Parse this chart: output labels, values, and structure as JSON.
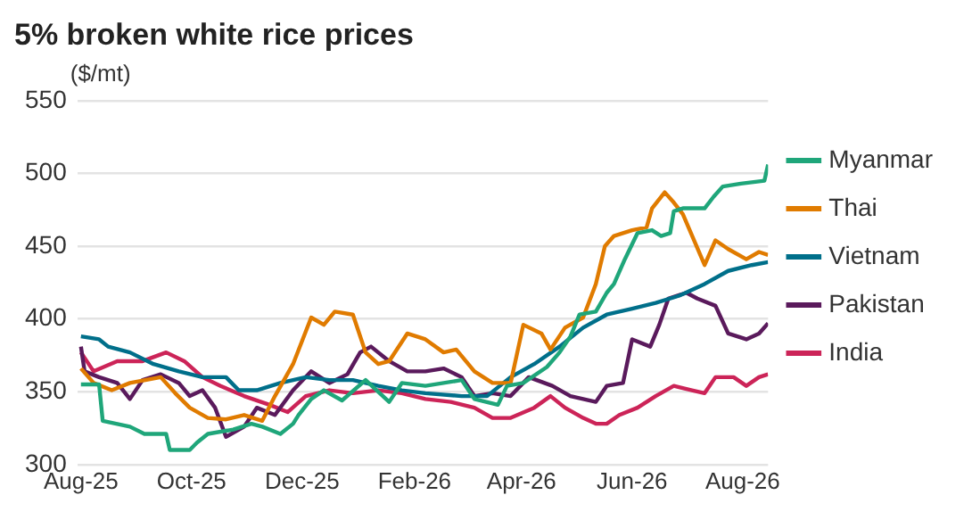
{
  "chart_data": {
    "type": "line",
    "title": "5% broken white rice prices",
    "ylabel": "($/mt)",
    "xlim": [
      "2025-07-30",
      "2026-08-15"
    ],
    "ylim": [
      300,
      550
    ],
    "yticks": [
      300,
      350,
      400,
      450,
      500,
      550
    ],
    "xticks": [
      {
        "value": "2025-08-01",
        "label": "Aug-25"
      },
      {
        "value": "2025-10-01",
        "label": "Oct-25"
      },
      {
        "value": "2025-12-01",
        "label": "Dec-25"
      },
      {
        "value": "2026-02-01",
        "label": "Feb-26"
      },
      {
        "value": "2026-04-01",
        "label": "Apr-26"
      },
      {
        "value": "2026-06-01",
        "label": "Jun-26"
      },
      {
        "value": "2026-08-01",
        "label": "Aug-26"
      }
    ],
    "grid": "y",
    "legend": "right",
    "series": [
      {
        "name": "Myanmar",
        "color": "#1fa67a",
        "x": [
          "2025-08-01",
          "2025-08-11",
          "2025-08-13",
          "2025-08-28",
          "2025-09-05",
          "2025-09-17",
          "2025-09-19",
          "2025-09-30",
          "2025-10-04",
          "2025-10-10",
          "2025-10-24",
          "2025-11-03",
          "2025-11-09",
          "2025-11-19",
          "2025-11-26",
          "2025-11-29",
          "2025-12-06",
          "2025-12-13",
          "2025-12-23",
          "2026-01-05",
          "2026-01-18",
          "2026-01-25",
          "2026-02-07",
          "2026-02-27",
          "2026-03-06",
          "2026-03-19",
          "2026-03-24",
          "2026-04-02",
          "2026-04-15",
          "2026-04-22",
          "2026-04-28",
          "2026-05-03",
          "2026-05-12",
          "2026-05-18",
          "2026-05-22",
          "2026-05-28",
          "2026-06-04",
          "2026-06-12",
          "2026-06-17",
          "2026-06-22",
          "2026-06-24",
          "2026-06-29",
          "2026-07-11",
          "2026-07-16",
          "2026-07-21",
          "2026-07-31",
          "2026-08-13",
          "2026-08-15"
        ],
        "values": [
          355,
          355,
          330,
          326,
          321,
          321,
          310,
          310,
          315,
          321,
          324,
          328,
          326,
          321,
          328,
          334,
          345,
          351,
          344,
          358,
          343,
          356,
          354,
          358,
          345,
          341,
          354,
          356,
          367,
          377,
          388,
          403,
          405,
          418,
          424,
          441,
          459,
          461,
          457,
          459,
          474,
          476,
          476,
          484,
          491,
          493,
          495,
          506
        ]
      },
      {
        "name": "Thai",
        "color": "#e07b00",
        "x": [
          "2025-08-01",
          "2025-08-08",
          "2025-08-18",
          "2025-08-28",
          "2025-09-14",
          "2025-09-22",
          "2025-09-30",
          "2025-10-10",
          "2025-10-20",
          "2025-10-30",
          "2025-11-09",
          "2025-11-16",
          "2025-11-26",
          "2025-12-06",
          "2025-12-13",
          "2025-12-19",
          "2025-12-29",
          "2026-01-05",
          "2026-01-12",
          "2026-01-18",
          "2026-01-28",
          "2026-02-07",
          "2026-02-17",
          "2026-02-24",
          "2026-03-06",
          "2026-03-16",
          "2026-03-26",
          "2026-04-02",
          "2026-04-12",
          "2026-04-17",
          "2026-04-25",
          "2026-05-05",
          "2026-05-12",
          "2026-05-17",
          "2026-05-22",
          "2026-06-01",
          "2026-06-09",
          "2026-06-12",
          "2026-06-19",
          "2026-06-24",
          "2026-06-29",
          "2026-07-11",
          "2026-07-17",
          "2026-07-24",
          "2026-08-03",
          "2026-08-10",
          "2026-08-15"
        ],
        "values": [
          366,
          356,
          351,
          356,
          360,
          349,
          339,
          332,
          331,
          334,
          330,
          347,
          369,
          401,
          396,
          405,
          403,
          377,
          369,
          371,
          390,
          386,
          377,
          379,
          364,
          356,
          356,
          396,
          390,
          379,
          394,
          401,
          424,
          450,
          457,
          461,
          463,
          476,
          487,
          480,
          472,
          437,
          454,
          448,
          441,
          446,
          444
        ]
      },
      {
        "name": "Vietnam",
        "color": "#006f8a",
        "x": [
          "2025-08-01",
          "2025-08-11",
          "2025-08-16",
          "2025-08-28",
          "2025-09-10",
          "2025-09-24",
          "2025-10-07",
          "2025-10-20",
          "2025-10-27",
          "2025-11-06",
          "2025-11-19",
          "2025-12-03",
          "2025-12-16",
          "2025-12-29",
          "2026-01-12",
          "2026-01-25",
          "2026-02-07",
          "2026-02-27",
          "2026-03-13",
          "2026-03-26",
          "2026-04-08",
          "2026-04-22",
          "2026-05-05",
          "2026-05-18",
          "2026-06-01",
          "2026-06-14",
          "2026-06-27",
          "2026-07-11",
          "2026-07-24",
          "2026-08-06",
          "2026-08-15"
        ],
        "values": [
          388,
          386,
          381,
          377,
          369,
          364,
          360,
          360,
          351,
          351,
          356,
          360,
          358,
          358,
          354,
          351,
          349,
          347,
          347,
          360,
          369,
          381,
          394,
          403,
          407,
          411,
          416,
          424,
          433,
          437,
          439
        ]
      },
      {
        "name": "Pakistan",
        "color": "#5a1a5c",
        "x": [
          "2025-08-01",
          "2025-08-03",
          "2025-08-11",
          "2025-08-21",
          "2025-08-28",
          "2025-09-04",
          "2025-09-14",
          "2025-09-24",
          "2025-09-30",
          "2025-10-07",
          "2025-10-14",
          "2025-10-20",
          "2025-10-30",
          "2025-11-06",
          "2025-11-16",
          "2025-11-26",
          "2025-12-06",
          "2025-12-16",
          "2025-12-26",
          "2026-01-02",
          "2026-01-08",
          "2026-01-18",
          "2026-01-28",
          "2026-02-07",
          "2026-02-17",
          "2026-02-27",
          "2026-03-06",
          "2026-03-16",
          "2026-03-26",
          "2026-04-05",
          "2026-04-18",
          "2026-04-28",
          "2026-05-12",
          "2026-05-18",
          "2026-05-27",
          "2026-06-01",
          "2026-06-11",
          "2026-06-16",
          "2026-06-21",
          "2026-07-01",
          "2026-07-07",
          "2026-07-17",
          "2026-07-24",
          "2026-08-03",
          "2026-08-10",
          "2026-08-15"
        ],
        "values": [
          381,
          364,
          360,
          356,
          345,
          358,
          362,
          356,
          347,
          351,
          339,
          319,
          326,
          339,
          334,
          351,
          364,
          356,
          362,
          377,
          381,
          371,
          364,
          364,
          366,
          360,
          347,
          349,
          347,
          360,
          354,
          347,
          343,
          354,
          356,
          386,
          381,
          396,
          414,
          418,
          414,
          409,
          390,
          386,
          390,
          397
        ]
      },
      {
        "name": "India",
        "color": "#cc2458",
        "x": [
          "2025-08-01",
          "2025-08-08",
          "2025-08-21",
          "2025-09-04",
          "2025-09-17",
          "2025-09-27",
          "2025-10-07",
          "2025-10-17",
          "2025-10-30",
          "2025-11-13",
          "2025-11-23",
          "2025-12-03",
          "2025-12-16",
          "2025-12-29",
          "2026-01-12",
          "2026-01-25",
          "2026-02-07",
          "2026-02-21",
          "2026-03-06",
          "2026-03-16",
          "2026-03-26",
          "2026-04-08",
          "2026-04-17",
          "2026-04-25",
          "2026-05-05",
          "2026-05-12",
          "2026-05-18",
          "2026-05-25",
          "2026-06-04",
          "2026-06-14",
          "2026-06-24",
          "2026-07-04",
          "2026-07-11",
          "2026-07-17",
          "2026-07-27",
          "2026-08-03",
          "2026-08-10",
          "2026-08-15"
        ],
        "values": [
          377,
          364,
          371,
          371,
          377,
          371,
          360,
          354,
          347,
          341,
          336,
          347,
          351,
          349,
          351,
          349,
          345,
          343,
          339,
          332,
          332,
          339,
          347,
          339,
          332,
          328,
          328,
          334,
          339,
          347,
          354,
          351,
          349,
          360,
          360,
          354,
          360,
          362
        ]
      }
    ]
  }
}
